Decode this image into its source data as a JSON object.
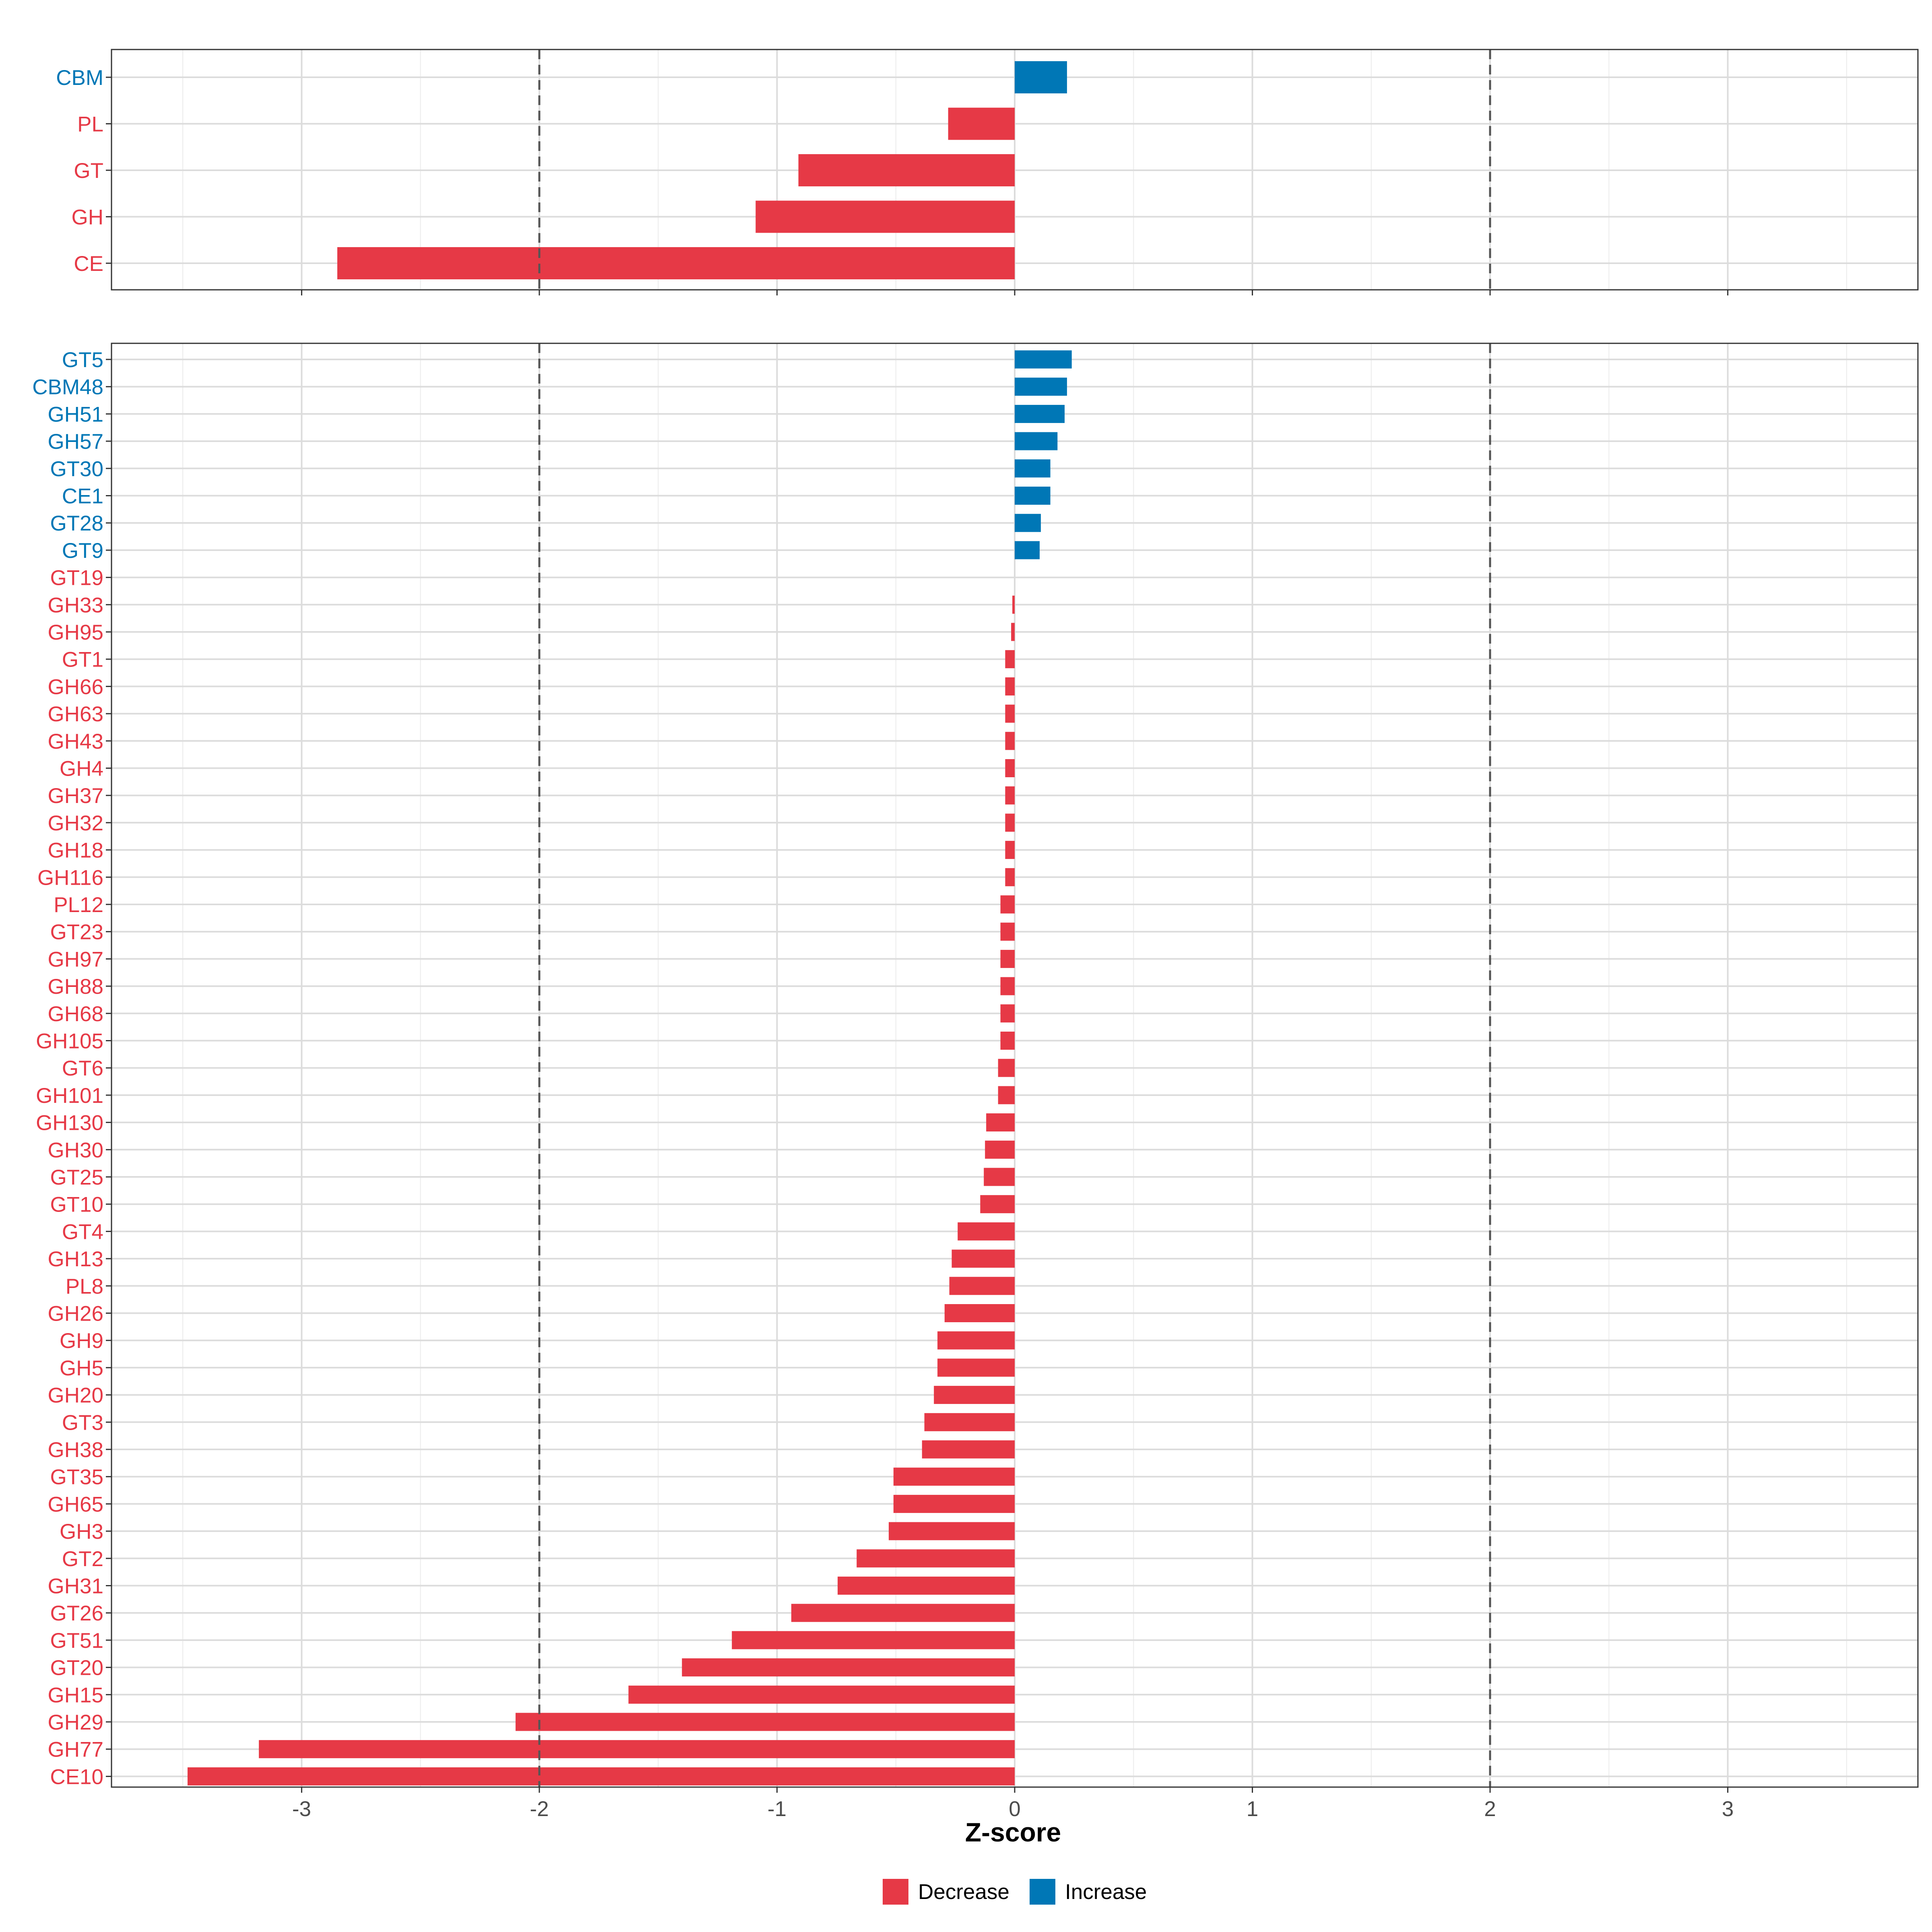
{
  "chart_data": [
    {
      "type": "bar",
      "orientation": "horizontal",
      "panel": "family-class",
      "categories": [
        "CBM",
        "PL",
        "GT",
        "GH",
        "CE"
      ],
      "values": [
        0.22,
        -0.28,
        -0.91,
        -1.09,
        -2.85
      ],
      "directions": [
        "Increase",
        "Decrease",
        "Decrease",
        "Decrease",
        "Decrease"
      ],
      "xlim": [
        -3.8,
        3.8
      ],
      "reference_lines": [
        -2,
        2
      ],
      "grid": true
    },
    {
      "type": "bar",
      "orientation": "horizontal",
      "panel": "family",
      "categories": [
        "GT5",
        "CBM48",
        "GH51",
        "GH57",
        "GT30",
        "CE1",
        "GT28",
        "GT9",
        "GT19",
        "GH33",
        "GH95",
        "GT1",
        "GH66",
        "GH63",
        "GH43",
        "GH4",
        "GH37",
        "GH32",
        "GH18",
        "GH116",
        "PL12",
        "GT23",
        "GH97",
        "GH88",
        "GH68",
        "GH105",
        "GT6",
        "GH101",
        "GH130",
        "GH30",
        "GT25",
        "GT10",
        "GT4",
        "GH13",
        "PL8",
        "GH26",
        "GH9",
        "GH5",
        "GH20",
        "GT3",
        "GH38",
        "GT35",
        "GH65",
        "GH3",
        "GT2",
        "GH31",
        "GT26",
        "GT51",
        "GT20",
        "GH15",
        "GH29",
        "GH77",
        "CE10"
      ],
      "values": [
        0.24,
        0.22,
        0.21,
        0.18,
        0.15,
        0.15,
        0.11,
        0.105,
        0.0,
        -0.01,
        -0.015,
        -0.04,
        -0.04,
        -0.04,
        -0.04,
        -0.04,
        -0.04,
        -0.04,
        -0.04,
        -0.04,
        -0.06,
        -0.06,
        -0.06,
        -0.06,
        -0.06,
        -0.06,
        -0.07,
        -0.07,
        -0.12,
        -0.125,
        -0.13,
        -0.145,
        -0.24,
        -0.265,
        -0.275,
        -0.295,
        -0.325,
        -0.325,
        -0.34,
        -0.38,
        -0.39,
        -0.51,
        -0.51,
        -0.53,
        -0.665,
        -0.745,
        -0.94,
        -1.19,
        -1.4,
        -1.625,
        -2.1,
        -3.18,
        -3.48
      ],
      "directions": [
        "Increase",
        "Increase",
        "Increase",
        "Increase",
        "Increase",
        "Increase",
        "Increase",
        "Increase",
        "Decrease",
        "Decrease",
        "Decrease",
        "Decrease",
        "Decrease",
        "Decrease",
        "Decrease",
        "Decrease",
        "Decrease",
        "Decrease",
        "Decrease",
        "Decrease",
        "Decrease",
        "Decrease",
        "Decrease",
        "Decrease",
        "Decrease",
        "Decrease",
        "Decrease",
        "Decrease",
        "Decrease",
        "Decrease",
        "Decrease",
        "Decrease",
        "Decrease",
        "Decrease",
        "Decrease",
        "Decrease",
        "Decrease",
        "Decrease",
        "Decrease",
        "Decrease",
        "Decrease",
        "Decrease",
        "Decrease",
        "Decrease",
        "Decrease",
        "Decrease",
        "Decrease",
        "Decrease",
        "Decrease",
        "Decrease",
        "Decrease",
        "Decrease",
        "Decrease"
      ],
      "xlim": [
        -3.8,
        3.8
      ],
      "xticks": [
        -3,
        -2,
        -1,
        0,
        1,
        2,
        3
      ],
      "xtick_labels": [
        "-3",
        "-2",
        "-1",
        "0",
        "1",
        "2",
        "3"
      ],
      "xlabel": "Z-score",
      "reference_lines": [
        -2,
        2
      ],
      "grid": true
    }
  ],
  "legend": {
    "position": "bottom",
    "items": [
      {
        "label": "Decrease",
        "color": "#e63946"
      },
      {
        "label": "Increase",
        "color": "#0077b6"
      }
    ]
  },
  "colors": {
    "Decrease": "#e63946",
    "Increase": "#0077b6",
    "grid": "#dcdcdc",
    "reference_line": "#555555",
    "frame": "#333333"
  }
}
